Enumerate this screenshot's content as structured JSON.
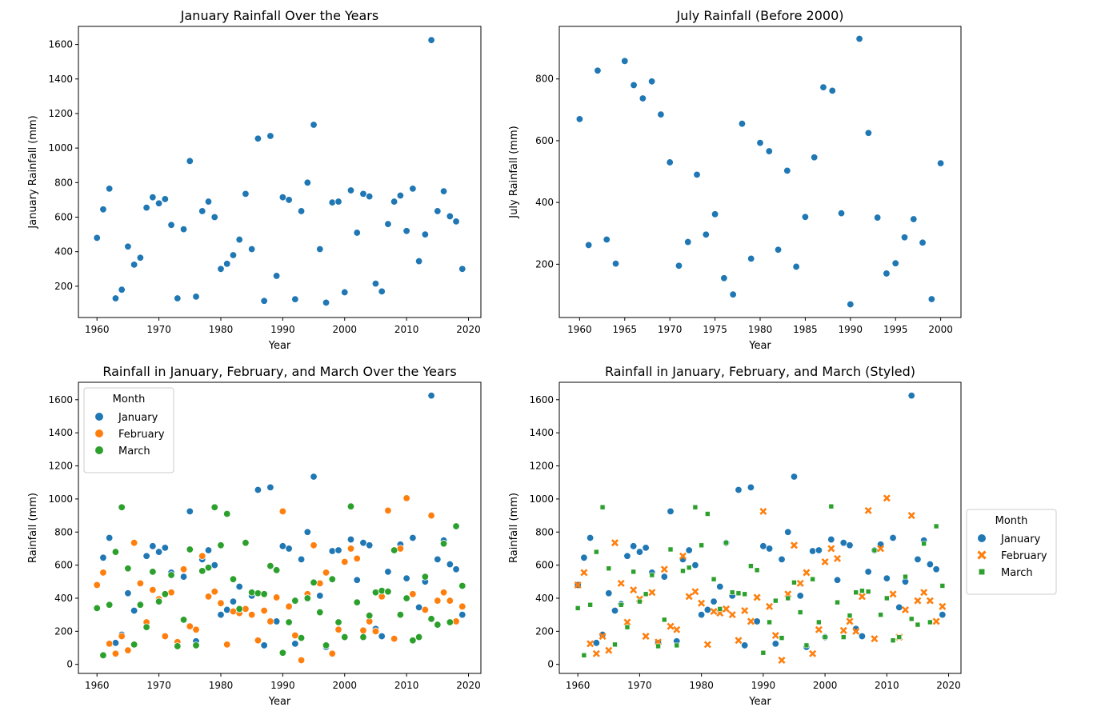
{
  "palette": {
    "January": "#1f77b4",
    "February": "#ff7f0e",
    "March": "#2ca02c"
  },
  "chart_data": [
    {
      "type": "scatter",
      "title": "January Rainfall Over the Years",
      "xlabel": "Year",
      "ylabel": "January Rainfall (mm)",
      "xlim": [
        1957.0,
        2022.0
      ],
      "ylim": [
        18.9,
        1704.5
      ],
      "xticks": [
        1960,
        1970,
        1980,
        1990,
        2000,
        2010,
        2020
      ],
      "yticks": [
        200,
        400,
        600,
        800,
        1000,
        1200,
        1400,
        1600
      ],
      "legend": "none",
      "series": [
        {
          "key": "January",
          "marker": "circle",
          "x": [
            1960,
            1961,
            1962,
            1963,
            1964,
            1965,
            1966,
            1967,
            1968,
            1969,
            1970,
            1971,
            1972,
            1973,
            1974,
            1975,
            1976,
            1977,
            1978,
            1979,
            1980,
            1981,
            1982,
            1983,
            1984,
            1985,
            1986,
            1987,
            1988,
            1989,
            1990,
            1991,
            1992,
            1993,
            1994,
            1995,
            1996,
            1997,
            1998,
            1999,
            2000,
            2001,
            2002,
            2003,
            2004,
            2005,
            2006,
            2007,
            2008,
            2009,
            2010,
            2011,
            2012,
            2013,
            2014,
            2015,
            2016,
            2017,
            2018,
            2019
          ],
          "y": [
            480,
            645,
            765,
            130,
            180,
            430,
            325,
            365,
            655,
            715,
            680,
            705,
            555,
            130,
            530,
            925,
            140,
            635,
            690,
            600,
            300,
            330,
            380,
            470,
            735,
            415,
            1055,
            115,
            1070,
            260,
            715,
            700,
            125,
            635,
            800,
            1135,
            415,
            105,
            685,
            690,
            165,
            755,
            510,
            735,
            720,
            215,
            170,
            560,
            690,
            725,
            520,
            765,
            345,
            500,
            1625,
            635,
            750,
            605,
            575,
            300
          ]
        }
      ]
    },
    {
      "type": "scatter",
      "title": "July Rainfall (Before 2000)",
      "xlabel": "Year",
      "ylabel": "July Rainfall (mm)",
      "xlim": [
        1957.75,
        2002.25
      ],
      "ylim": [
        27.4,
        970.2
      ],
      "xticks": [
        1960,
        1965,
        1970,
        1975,
        1980,
        1985,
        1990,
        1995,
        2000
      ],
      "yticks": [
        200,
        400,
        600,
        800
      ],
      "legend": "none",
      "series": [
        {
          "key": "January",
          "marker": "circle",
          "x": [
            1960,
            1961,
            1962,
            1963,
            1964,
            1965,
            1966,
            1967,
            1968,
            1969,
            1970,
            1971,
            1972,
            1973,
            1974,
            1975,
            1976,
            1977,
            1978,
            1979,
            1980,
            1981,
            1982,
            1983,
            1984,
            1985,
            1986,
            1987,
            1988,
            1989,
            1990,
            1991,
            1992,
            1993,
            1994,
            1995,
            1996,
            1997,
            1998,
            1999,
            2000
          ],
          "y": [
            670,
            262,
            827,
            280,
            202,
            858,
            780,
            737,
            792,
            685,
            530,
            195,
            272,
            490,
            296,
            362,
            155,
            102,
            655,
            218,
            593,
            566,
            247,
            503,
            192,
            353,
            546,
            773,
            762,
            365,
            70,
            930,
            625,
            351,
            170,
            203,
            287,
            346,
            270,
            87,
            527
          ]
        }
      ]
    },
    {
      "type": "scatter",
      "title": "Rainfall in January, February, and March Over the Years",
      "xlabel": "Year",
      "ylabel": "Rainfall (mm)",
      "xlim": [
        1957.0,
        2022.0
      ],
      "ylim": [
        -54.6,
        1705.4
      ],
      "xticks": [
        1960,
        1970,
        1980,
        1990,
        2000,
        2010,
        2020
      ],
      "yticks": [
        0,
        200,
        400,
        600,
        800,
        1000,
        1200,
        1400,
        1600
      ],
      "legend": "top-left",
      "legend_title": "Month",
      "series": [
        {
          "key": "January",
          "name": "January",
          "marker": "circle",
          "x": [
            1960,
            1961,
            1962,
            1963,
            1964,
            1965,
            1966,
            1967,
            1968,
            1969,
            1970,
            1971,
            1972,
            1973,
            1974,
            1975,
            1976,
            1977,
            1978,
            1979,
            1980,
            1981,
            1982,
            1983,
            1984,
            1985,
            1986,
            1987,
            1988,
            1989,
            1990,
            1991,
            1992,
            1993,
            1994,
            1995,
            1996,
            1997,
            1998,
            1999,
            2000,
            2001,
            2002,
            2003,
            2004,
            2005,
            2006,
            2007,
            2008,
            2009,
            2010,
            2011,
            2012,
            2013,
            2014,
            2015,
            2016,
            2017,
            2018,
            2019
          ],
          "y": [
            480,
            645,
            765,
            130,
            180,
            430,
            325,
            365,
            655,
            715,
            680,
            705,
            555,
            130,
            530,
            925,
            140,
            635,
            690,
            600,
            300,
            330,
            380,
            470,
            735,
            415,
            1055,
            115,
            1070,
            260,
            715,
            700,
            125,
            635,
            800,
            1135,
            415,
            105,
            685,
            690,
            165,
            755,
            510,
            735,
            720,
            215,
            170,
            560,
            690,
            725,
            520,
            765,
            345,
            500,
            1625,
            635,
            750,
            605,
            575,
            300
          ]
        },
        {
          "key": "February",
          "name": "February",
          "marker": "circle",
          "x": [
            1960,
            1961,
            1962,
            1963,
            1964,
            1965,
            1966,
            1967,
            1968,
            1969,
            1970,
            1971,
            1972,
            1973,
            1974,
            1975,
            1976,
            1977,
            1978,
            1979,
            1980,
            1981,
            1982,
            1983,
            1984,
            1985,
            1986,
            1987,
            1988,
            1989,
            1990,
            1991,
            1992,
            1993,
            1994,
            1995,
            1996,
            1997,
            1998,
            1999,
            2000,
            2001,
            2002,
            2003,
            2004,
            2005,
            2006,
            2007,
            2008,
            2009,
            2010,
            2011,
            2012,
            2013,
            2014,
            2015,
            2016,
            2017,
            2018,
            2019
          ],
          "y": [
            480,
            555,
            125,
            65,
            170,
            85,
            735,
            490,
            255,
            450,
            395,
            170,
            435,
            135,
            575,
            230,
            210,
            655,
            410,
            440,
            370,
            120,
            320,
            310,
            335,
            300,
            145,
            325,
            260,
            405,
            925,
            350,
            175,
            25,
            425,
            720,
            490,
            555,
            65,
            210,
            620,
            700,
            640,
            205,
            260,
            200,
            410,
            930,
            155,
            700,
            1005,
            425,
            165,
            330,
            900,
            385,
            435,
            385,
            260,
            350
          ]
        },
        {
          "key": "March",
          "name": "March",
          "marker": "circle",
          "x": [
            1960,
            1961,
            1962,
            1963,
            1964,
            1965,
            1966,
            1967,
            1968,
            1969,
            1970,
            1971,
            1972,
            1973,
            1974,
            1975,
            1976,
            1977,
            1978,
            1979,
            1980,
            1981,
            1982,
            1983,
            1984,
            1985,
            1986,
            1987,
            1988,
            1989,
            1990,
            1991,
            1992,
            1993,
            1994,
            1995,
            1996,
            1997,
            1998,
            1999,
            2000,
            2001,
            2002,
            2003,
            2004,
            2005,
            2006,
            2007,
            2008,
            2009,
            2010,
            2011,
            2012,
            2013,
            2014,
            2015,
            2016,
            2017,
            2018,
            2019
          ],
          "y": [
            340,
            55,
            360,
            680,
            950,
            580,
            120,
            360,
            225,
            560,
            380,
            425,
            540,
            110,
            270,
            695,
            115,
            565,
            585,
            950,
            720,
            910,
            515,
            335,
            735,
            435,
            430,
            425,
            595,
            570,
            70,
            255,
            385,
            160,
            400,
            495,
            315,
            115,
            515,
            255,
            165,
            955,
            375,
            165,
            295,
            435,
            445,
            440,
            690,
            300,
            400,
            145,
            165,
            530,
            275,
            240,
            730,
            255,
            835,
            475
          ]
        }
      ]
    },
    {
      "type": "scatter",
      "title": "Rainfall in January, February, and March (Styled)",
      "xlabel": "Year",
      "ylabel": "Rainfall (mm)",
      "xlim": [
        1957.0,
        2022.0
      ],
      "ylim": [
        -54.6,
        1705.4
      ],
      "xticks": [
        1960,
        1970,
        1980,
        1990,
        2000,
        2010,
        2020
      ],
      "yticks": [
        0,
        200,
        400,
        600,
        800,
        1000,
        1200,
        1400,
        1600
      ],
      "legend": "outside right",
      "legend_title": "Month",
      "series": [
        {
          "key": "January",
          "name": "January",
          "marker": "circle",
          "x": [
            1960,
            1961,
            1962,
            1963,
            1964,
            1965,
            1966,
            1967,
            1968,
            1969,
            1970,
            1971,
            1972,
            1973,
            1974,
            1975,
            1976,
            1977,
            1978,
            1979,
            1980,
            1981,
            1982,
            1983,
            1984,
            1985,
            1986,
            1987,
            1988,
            1989,
            1990,
            1991,
            1992,
            1993,
            1994,
            1995,
            1996,
            1997,
            1998,
            1999,
            2000,
            2001,
            2002,
            2003,
            2004,
            2005,
            2006,
            2007,
            2008,
            2009,
            2010,
            2011,
            2012,
            2013,
            2014,
            2015,
            2016,
            2017,
            2018,
            2019
          ],
          "y": [
            480,
            645,
            765,
            130,
            180,
            430,
            325,
            365,
            655,
            715,
            680,
            705,
            555,
            130,
            530,
            925,
            140,
            635,
            690,
            600,
            300,
            330,
            380,
            470,
            735,
            415,
            1055,
            115,
            1070,
            260,
            715,
            700,
            125,
            635,
            800,
            1135,
            415,
            105,
            685,
            690,
            165,
            755,
            510,
            735,
            720,
            215,
            170,
            560,
            690,
            725,
            520,
            765,
            345,
            500,
            1625,
            635,
            750,
            605,
            575,
            300
          ]
        },
        {
          "key": "February",
          "name": "February",
          "marker": "x",
          "x": [
            1960,
            1961,
            1962,
            1963,
            1964,
            1965,
            1966,
            1967,
            1968,
            1969,
            1970,
            1971,
            1972,
            1973,
            1974,
            1975,
            1976,
            1977,
            1978,
            1979,
            1980,
            1981,
            1982,
            1983,
            1984,
            1985,
            1986,
            1987,
            1988,
            1989,
            1990,
            1991,
            1992,
            1993,
            1994,
            1995,
            1996,
            1997,
            1998,
            1999,
            2000,
            2001,
            2002,
            2003,
            2004,
            2005,
            2006,
            2007,
            2008,
            2009,
            2010,
            2011,
            2012,
            2013,
            2014,
            2015,
            2016,
            2017,
            2018,
            2019
          ],
          "y": [
            480,
            555,
            125,
            65,
            170,
            85,
            735,
            490,
            255,
            450,
            395,
            170,
            435,
            135,
            575,
            230,
            210,
            655,
            410,
            440,
            370,
            120,
            320,
            310,
            335,
            300,
            145,
            325,
            260,
            405,
            925,
            350,
            175,
            25,
            425,
            720,
            490,
            555,
            65,
            210,
            620,
            700,
            640,
            205,
            260,
            200,
            410,
            930,
            155,
            700,
            1005,
            425,
            165,
            330,
            900,
            385,
            435,
            385,
            260,
            350
          ]
        },
        {
          "key": "March",
          "name": "March",
          "marker": "square",
          "x": [
            1960,
            1961,
            1962,
            1963,
            1964,
            1965,
            1966,
            1967,
            1968,
            1969,
            1970,
            1971,
            1972,
            1973,
            1974,
            1975,
            1976,
            1977,
            1978,
            1979,
            1980,
            1981,
            1982,
            1983,
            1984,
            1985,
            1986,
            1987,
            1988,
            1989,
            1990,
            1991,
            1992,
            1993,
            1994,
            1995,
            1996,
            1997,
            1998,
            1999,
            2000,
            2001,
            2002,
            2003,
            2004,
            2005,
            2006,
            2007,
            2008,
            2009,
            2010,
            2011,
            2012,
            2013,
            2014,
            2015,
            2016,
            2017,
            2018,
            2019
          ],
          "y": [
            340,
            55,
            360,
            680,
            950,
            580,
            120,
            360,
            225,
            560,
            380,
            425,
            540,
            110,
            270,
            695,
            115,
            565,
            585,
            950,
            720,
            910,
            515,
            335,
            735,
            435,
            430,
            425,
            595,
            570,
            70,
            255,
            385,
            160,
            400,
            495,
            315,
            115,
            515,
            255,
            165,
            955,
            375,
            165,
            295,
            435,
            445,
            440,
            690,
            300,
            400,
            145,
            165,
            530,
            275,
            240,
            730,
            255,
            835,
            475
          ]
        }
      ]
    }
  ]
}
